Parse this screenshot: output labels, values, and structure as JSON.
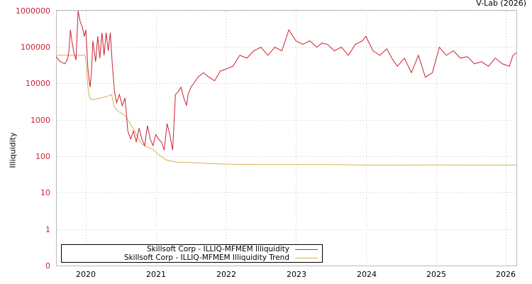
{
  "credit": "V-Lab (2026)",
  "chart_data": {
    "type": "line",
    "title": "",
    "xlabel": "",
    "ylabel": "Illiquidity",
    "yscale": "log",
    "ylim": [
      0.1,
      1000000
    ],
    "y_ticks": [
      "1000000",
      "100000",
      "10000",
      "1000",
      "100",
      "10",
      "1",
      "0"
    ],
    "x_ticks": [
      "2020",
      "2021",
      "2022",
      "2023",
      "2024",
      "2025",
      "2026"
    ],
    "xlim": [
      2019.58,
      2026.15
    ],
    "grid": true,
    "legend_position": "bottom-left",
    "series": [
      {
        "name": "Skillsoft Corp - ILLIQ-MFMEM Illiquidity",
        "color": "#cc2233",
        "x": [
          2019.58,
          2019.62,
          2019.66,
          2019.7,
          2019.74,
          2019.76,
          2019.78,
          2019.8,
          2019.83,
          2019.86,
          2019.89,
          2019.92,
          2019.95,
          2019.98,
          2020.0,
          2020.03,
          2020.06,
          2020.08,
          2020.1,
          2020.14,
          2020.17,
          2020.2,
          2020.23,
          2020.26,
          2020.29,
          2020.32,
          2020.35,
          2020.38,
          2020.41,
          2020.44,
          2020.48,
          2020.52,
          2020.56,
          2020.6,
          2020.64,
          2020.68,
          2020.72,
          2020.76,
          2020.8,
          2020.84,
          2020.88,
          2020.92,
          2020.96,
          2021.0,
          2021.04,
          2021.08,
          2021.12,
          2021.16,
          2021.2,
          2021.24,
          2021.28,
          2021.32,
          2021.36,
          2021.4,
          2021.44,
          2021.46,
          2021.5,
          2021.54,
          2021.6,
          2021.68,
          2021.76,
          2021.84,
          2021.92,
          2022.0,
          2022.1,
          2022.2,
          2022.3,
          2022.4,
          2022.5,
          2022.6,
          2022.7,
          2022.8,
          2022.9,
          2023.0,
          2023.1,
          2023.2,
          2023.3,
          2023.37,
          2023.45,
          2023.55,
          2023.65,
          2023.75,
          2023.85,
          2023.95,
          2024.0,
          2024.1,
          2024.2,
          2024.3,
          2024.37,
          2024.45,
          2024.55,
          2024.65,
          2024.75,
          2024.85,
          2024.95,
          2025.05,
          2025.15,
          2025.25,
          2025.35,
          2025.45,
          2025.55,
          2025.65,
          2025.75,
          2025.85,
          2025.95,
          2026.05,
          2026.1,
          2026.15
        ],
        "values": [
          55000,
          42000,
          38000,
          35000,
          48000,
          80000,
          300000,
          150000,
          70000,
          45000,
          1000000,
          500000,
          350000,
          200000,
          300000,
          25000,
          8000,
          20000,
          150000,
          40000,
          200000,
          50000,
          250000,
          60000,
          250000,
          80000,
          250000,
          30000,
          6000,
          3000,
          5000,
          2500,
          4000,
          500,
          300,
          500,
          250,
          600,
          300,
          200,
          700,
          300,
          200,
          400,
          300,
          250,
          150,
          800,
          400,
          150,
          5000,
          6000,
          8000,
          4000,
          2500,
          5000,
          8000,
          10000,
          15000,
          20000,
          15000,
          12000,
          22000,
          25000,
          30000,
          60000,
          50000,
          80000,
          100000,
          60000,
          100000,
          80000,
          300000,
          150000,
          120000,
          150000,
          100000,
          130000,
          120000,
          80000,
          100000,
          60000,
          120000,
          150000,
          200000,
          80000,
          60000,
          90000,
          50000,
          30000,
          50000,
          20000,
          60000,
          15000,
          20000,
          100000,
          60000,
          80000,
          50000,
          55000,
          35000,
          40000,
          30000,
          50000,
          35000,
          30000,
          60000,
          70000
        ]
      },
      {
        "name": "Skillsoft Corp - ILLIQ-MFMEM Illiquidity Trend",
        "color": "#d4b24c",
        "x": [
          2019.58,
          2019.99,
          2020.01,
          2020.03,
          2020.05,
          2020.08,
          2020.15,
          2020.25,
          2020.35,
          2020.37,
          2020.4,
          2020.45,
          2020.52,
          2020.58,
          2020.65,
          2020.7,
          2020.75,
          2020.8,
          2020.85,
          2020.95,
          2021.05,
          2021.15,
          2021.3,
          2021.5,
          2021.7,
          2022.0,
          2022.5,
          2023.0,
          2023.5,
          2024.0,
          2024.5,
          2025.0,
          2025.5,
          2026.0,
          2026.15
        ],
        "values": [
          60000,
          60000,
          30000,
          8000,
          4500,
          3600,
          3800,
          4200,
          4800,
          5000,
          2500,
          1800,
          1500,
          1200,
          700,
          500,
          300,
          220,
          190,
          160,
          110,
          80,
          70,
          68,
          65,
          62,
          60,
          60,
          60,
          58,
          58,
          59,
          58,
          58,
          58
        ]
      }
    ]
  },
  "legend": {
    "items": [
      {
        "label": "Skillsoft Corp - ILLIQ-MFMEM Illiquidity",
        "color": "#cc2233"
      },
      {
        "label": "Skillsoft Corp - ILLIQ-MFMEM Illiquidity Trend",
        "color": "#d4b24c"
      }
    ]
  }
}
